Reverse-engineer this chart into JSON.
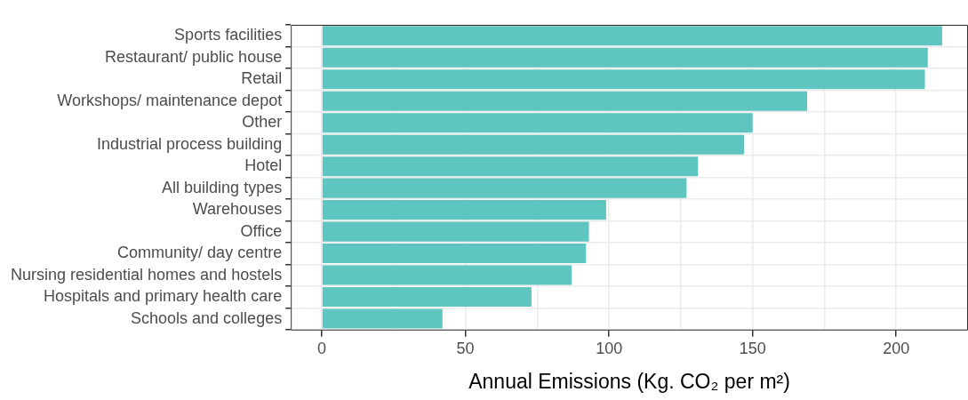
{
  "chart_data": {
    "type": "bar",
    "orientation": "horizontal",
    "xlabel": "Annual Emissions (Kg. CO₂ per m²)",
    "categories": [
      "Sports facilities",
      "Restaurant/ public house",
      "Retail",
      "Workshops/ maintenance depot",
      "Other",
      "Industrial process building",
      "Hotel",
      "All building types",
      "Warehouses",
      "Office",
      "Community/ day centre",
      "Nursing residential homes and hostels",
      "Hospitals and primary health care",
      "Schools and colleges"
    ],
    "values": [
      216,
      211,
      210,
      169,
      150,
      147,
      131,
      127,
      99,
      93,
      92,
      87,
      73,
      42
    ],
    "color": "#5ec5c1",
    "xlim": [
      -10.8,
      225
    ],
    "xticks": [
      0,
      {
        "value": 25,
        "label": null
      },
      50,
      {
        "value": 75,
        "label": null
      },
      100,
      {
        "value": 125,
        "label": null
      },
      150,
      {
        "value": 175,
        "label": null
      },
      200
    ],
    "grid": true,
    "legend": false
  }
}
